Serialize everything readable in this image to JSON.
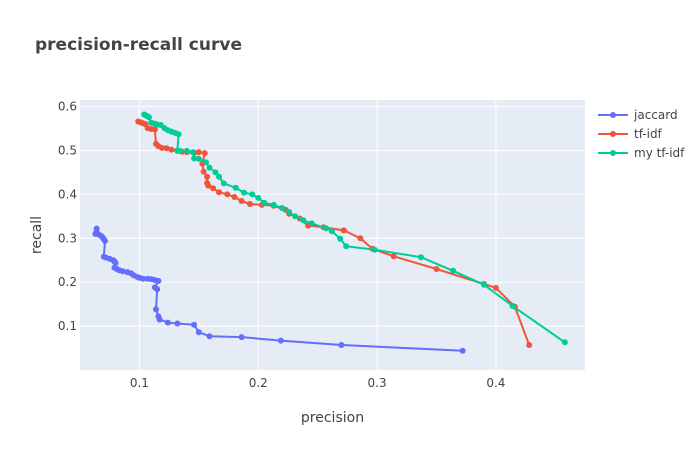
{
  "chart_data": {
    "type": "line",
    "title": "precision-recall curve",
    "xlabel": "precision",
    "ylabel": "recall",
    "xlim": [
      0.05,
      0.475
    ],
    "ylim": [
      0.0,
      0.615
    ],
    "x_ticks": [
      0.1,
      0.2,
      0.3,
      0.4
    ],
    "x_tick_labels": [
      "0.1",
      "0.2",
      "0.3",
      "0.4"
    ],
    "y_ticks": [
      0.1,
      0.2,
      0.3,
      0.4,
      0.5,
      0.6
    ],
    "y_tick_labels": [
      "0.1",
      "0.2",
      "0.3",
      "0.4",
      "0.5",
      "0.6"
    ],
    "grid": true,
    "legend_position": "right",
    "plot_background": "#e5ecf6",
    "series": [
      {
        "name": "jaccard",
        "color": "#636efa",
        "points": [
          [
            0.064,
            0.322
          ],
          [
            0.064,
            0.315
          ],
          [
            0.063,
            0.31
          ],
          [
            0.066,
            0.308
          ],
          [
            0.068,
            0.305
          ],
          [
            0.069,
            0.302
          ],
          [
            0.07,
            0.298
          ],
          [
            0.071,
            0.294
          ],
          [
            0.07,
            0.258
          ],
          [
            0.072,
            0.256
          ],
          [
            0.075,
            0.253
          ],
          [
            0.078,
            0.25
          ],
          [
            0.079,
            0.247
          ],
          [
            0.08,
            0.244
          ],
          [
            0.079,
            0.233
          ],
          [
            0.081,
            0.23
          ],
          [
            0.083,
            0.227
          ],
          [
            0.086,
            0.225
          ],
          [
            0.09,
            0.223
          ],
          [
            0.093,
            0.22
          ],
          [
            0.095,
            0.216
          ],
          [
            0.098,
            0.212
          ],
          [
            0.1,
            0.21
          ],
          [
            0.103,
            0.208
          ],
          [
            0.107,
            0.208
          ],
          [
            0.11,
            0.207
          ],
          [
            0.113,
            0.205
          ],
          [
            0.116,
            0.203
          ],
          [
            0.113,
            0.188
          ],
          [
            0.115,
            0.184
          ],
          [
            0.114,
            0.138
          ],
          [
            0.116,
            0.122
          ],
          [
            0.117,
            0.115
          ],
          [
            0.124,
            0.108
          ],
          [
            0.132,
            0.106
          ],
          [
            0.146,
            0.103
          ],
          [
            0.15,
            0.086
          ],
          [
            0.159,
            0.077
          ],
          [
            0.186,
            0.075
          ],
          [
            0.219,
            0.067
          ],
          [
            0.27,
            0.057
          ],
          [
            0.372,
            0.044
          ]
        ]
      },
      {
        "name": "tf-idf",
        "color": "#ef553b",
        "points": [
          [
            0.099,
            0.566
          ],
          [
            0.101,
            0.564
          ],
          [
            0.103,
            0.562
          ],
          [
            0.105,
            0.56
          ],
          [
            0.107,
            0.551
          ],
          [
            0.11,
            0.549
          ],
          [
            0.113,
            0.548
          ],
          [
            0.114,
            0.515
          ],
          [
            0.116,
            0.51
          ],
          [
            0.119,
            0.506
          ],
          [
            0.123,
            0.505
          ],
          [
            0.127,
            0.502
          ],
          [
            0.132,
            0.499
          ],
          [
            0.136,
            0.497
          ],
          [
            0.14,
            0.496
          ],
          [
            0.146,
            0.495
          ],
          [
            0.15,
            0.496
          ],
          [
            0.155,
            0.494
          ],
          [
            0.153,
            0.47
          ],
          [
            0.154,
            0.452
          ],
          [
            0.157,
            0.44
          ],
          [
            0.157,
            0.426
          ],
          [
            0.158,
            0.42
          ],
          [
            0.162,
            0.414
          ],
          [
            0.167,
            0.405
          ],
          [
            0.174,
            0.4
          ],
          [
            0.18,
            0.394
          ],
          [
            0.186,
            0.385
          ],
          [
            0.193,
            0.378
          ],
          [
            0.203,
            0.376
          ],
          [
            0.213,
            0.374
          ],
          [
            0.223,
            0.365
          ],
          [
            0.226,
            0.356
          ],
          [
            0.235,
            0.345
          ],
          [
            0.242,
            0.329
          ],
          [
            0.255,
            0.325
          ],
          [
            0.272,
            0.318
          ],
          [
            0.286,
            0.3
          ],
          [
            0.296,
            0.276
          ],
          [
            0.314,
            0.259
          ],
          [
            0.35,
            0.23
          ],
          [
            0.39,
            0.196
          ],
          [
            0.4,
            0.187
          ],
          [
            0.416,
            0.144
          ],
          [
            0.428,
            0.057
          ]
        ]
      },
      {
        "name": "my tf-idf",
        "color": "#00cc96",
        "points": [
          [
            0.104,
            0.582
          ],
          [
            0.106,
            0.579
          ],
          [
            0.108,
            0.576
          ],
          [
            0.11,
            0.563
          ],
          [
            0.113,
            0.561
          ],
          [
            0.115,
            0.559
          ],
          [
            0.118,
            0.558
          ],
          [
            0.121,
            0.551
          ],
          [
            0.124,
            0.546
          ],
          [
            0.127,
            0.543
          ],
          [
            0.13,
            0.54
          ],
          [
            0.133,
            0.537
          ],
          [
            0.132,
            0.5
          ],
          [
            0.134,
            0.499
          ],
          [
            0.14,
            0.499
          ],
          [
            0.145,
            0.496
          ],
          [
            0.146,
            0.482
          ],
          [
            0.15,
            0.481
          ],
          [
            0.156,
            0.473
          ],
          [
            0.159,
            0.461
          ],
          [
            0.164,
            0.45
          ],
          [
            0.167,
            0.44
          ],
          [
            0.171,
            0.425
          ],
          [
            0.181,
            0.415
          ],
          [
            0.188,
            0.404
          ],
          [
            0.195,
            0.4
          ],
          [
            0.2,
            0.392
          ],
          [
            0.205,
            0.381
          ],
          [
            0.213,
            0.376
          ],
          [
            0.22,
            0.369
          ],
          [
            0.226,
            0.36
          ],
          [
            0.231,
            0.35
          ],
          [
            0.238,
            0.341
          ],
          [
            0.245,
            0.334
          ],
          [
            0.257,
            0.323
          ],
          [
            0.262,
            0.316
          ],
          [
            0.269,
            0.299
          ],
          [
            0.274,
            0.282
          ],
          [
            0.298,
            0.274
          ],
          [
            0.337,
            0.257
          ],
          [
            0.364,
            0.226
          ],
          [
            0.39,
            0.194
          ],
          [
            0.414,
            0.146
          ],
          [
            0.458,
            0.063
          ]
        ]
      }
    ]
  }
}
